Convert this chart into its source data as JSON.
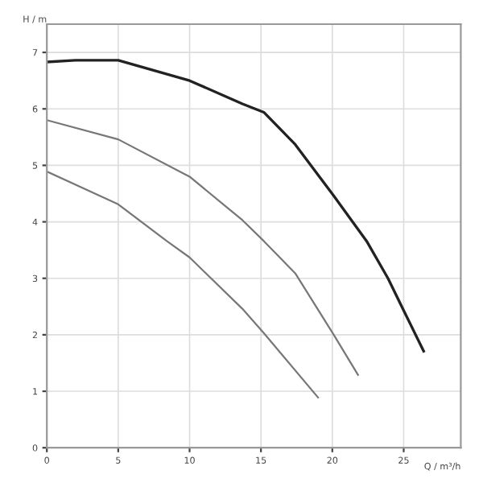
{
  "chart_data": {
    "type": "line",
    "xlabel": "Q / m³/h",
    "ylabel": "H / m",
    "xlim": [
      0,
      29
    ],
    "ylim": [
      0,
      7.5
    ],
    "xticks": [
      0,
      5,
      10,
      15,
      20,
      25
    ],
    "yticks": [
      0,
      1,
      2,
      3,
      4,
      5,
      6,
      7
    ],
    "grid": true,
    "marker": "none",
    "line_style": "solid",
    "series": [
      {
        "color": "#222222",
        "x": [
          0,
          2,
          5,
          10,
          13.7,
          15.2,
          17.4,
          20.1,
          22.4,
          23.9,
          25,
          26.4
        ],
        "values": [
          6.83,
          6.86,
          6.86,
          6.5,
          6.09,
          5.94,
          5.37,
          4.46,
          3.66,
          3.0,
          2.43,
          1.71
        ]
      },
      {
        "color": "#777777",
        "x": [
          0,
          5,
          10,
          13.7,
          15.2,
          17.4,
          20.1,
          21.8
        ],
        "values": [
          5.8,
          5.46,
          4.8,
          4.03,
          3.66,
          3.09,
          2.0,
          1.29
        ]
      },
      {
        "color": "#777777",
        "x": [
          0,
          5,
          8.4,
          10,
          13.7,
          15.2,
          19
        ],
        "values": [
          4.89,
          4.31,
          3.66,
          3.37,
          2.46,
          2.03,
          0.89
        ]
      }
    ]
  }
}
